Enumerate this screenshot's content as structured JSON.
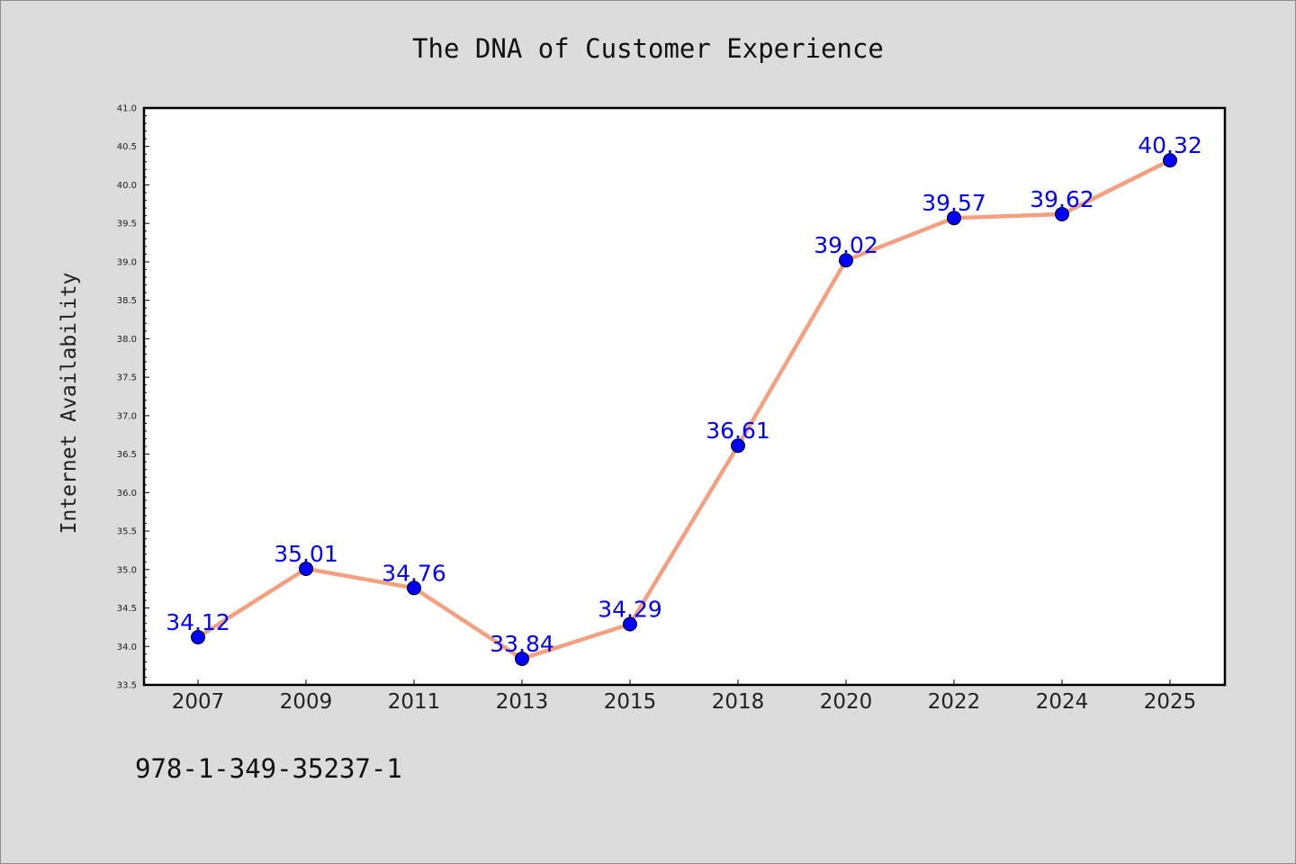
{
  "chart_data": {
    "type": "line",
    "title": "The DNA of Customer Experience",
    "xlabel": "",
    "ylabel": "Internet Availability",
    "categories": [
      "2007",
      "2009",
      "2011",
      "2013",
      "2015",
      "2018",
      "2020",
      "2022",
      "2024",
      "2025"
    ],
    "series": [
      {
        "values": [
          34.12,
          35.01,
          34.76,
          33.84,
          34.29,
          36.61,
          39.02,
          39.57,
          39.62,
          40.32
        ],
        "data_labels": [
          "34.12",
          "35.01",
          "34.76",
          "33.84",
          "34.29",
          "36.61",
          "39.02",
          "39.57",
          "39.62",
          "40.32"
        ],
        "line_color": "#f4a07e",
        "marker_color": "#0000ff"
      }
    ],
    "ylim": [
      33.5,
      41.0
    ],
    "yticks": [
      "33.5",
      "34.0",
      "34.5",
      "35.0",
      "35.5",
      "36.0",
      "36.5",
      "37.0",
      "37.5",
      "38.0",
      "38.5",
      "39.0",
      "39.5",
      "40.0",
      "40.5",
      "41.0"
    ],
    "grid": false,
    "legend": "none",
    "data_label_color": "#0000ff"
  },
  "footer": {
    "isbn": "978-1-349-35237-1"
  },
  "colors": {
    "background": "#dcdcdc",
    "plot_background": "#ffffff",
    "axis": "#000000"
  }
}
